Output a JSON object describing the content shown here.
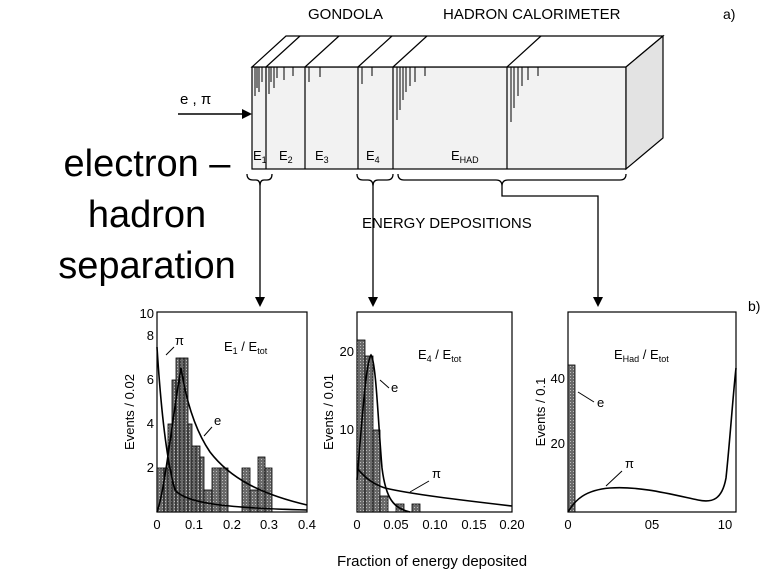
{
  "top_labels": {
    "gondola": "GONDOLA",
    "hadron_calorimeter": "HADRON CALORIMETER",
    "panel_a": "a)",
    "panel_b": "b)"
  },
  "beam_label": "e , π",
  "segments": {
    "e1": {
      "main": "E",
      "sub": "1"
    },
    "e2": {
      "main": "E",
      "sub": "2"
    },
    "e3": {
      "main": "E",
      "sub": "3"
    },
    "e4": {
      "main": "E",
      "sub": "4"
    },
    "ehad": {
      "main": "E",
      "sub": "HAD"
    }
  },
  "energy_depositions": "ENERGY DEPOSITIONS",
  "side_title": [
    "electron –",
    "hadron",
    "separation"
  ],
  "x_axis_common": "Fraction of energy deposited",
  "histograms": {
    "e1": {
      "title_main": "E",
      "title_sub": "1",
      "title_sep": " / E",
      "title_sub2": "tot",
      "ylabel": "Events / 0.02",
      "xticks": [
        "0",
        "0.1",
        "0.2",
        "0.3",
        "0.4"
      ],
      "yticks": [
        "2",
        "4",
        "6",
        "8",
        "10"
      ],
      "curve_e": "e",
      "curve_pi": "π"
    },
    "e4": {
      "title_main": "E",
      "title_sub": "4",
      "title_sep": " / E",
      "title_sub2": "tot",
      "ylabel": "Events / 0.01",
      "xticks": [
        "0",
        "0.05",
        "0.10",
        "0.15",
        "0.20"
      ],
      "yticks": [
        "10",
        "20"
      ],
      "curve_e": "e",
      "curve_pi": "π"
    },
    "ehad": {
      "title_main": "E",
      "title_sub": "Had",
      "title_sep": " / E",
      "title_sub2": "tot",
      "ylabel": "Events / 0.1",
      "xticks": [
        "0",
        "05",
        "10"
      ],
      "yticks": [
        "20",
        "40"
      ],
      "curve_e": "e",
      "curve_pi": "π"
    }
  }
}
